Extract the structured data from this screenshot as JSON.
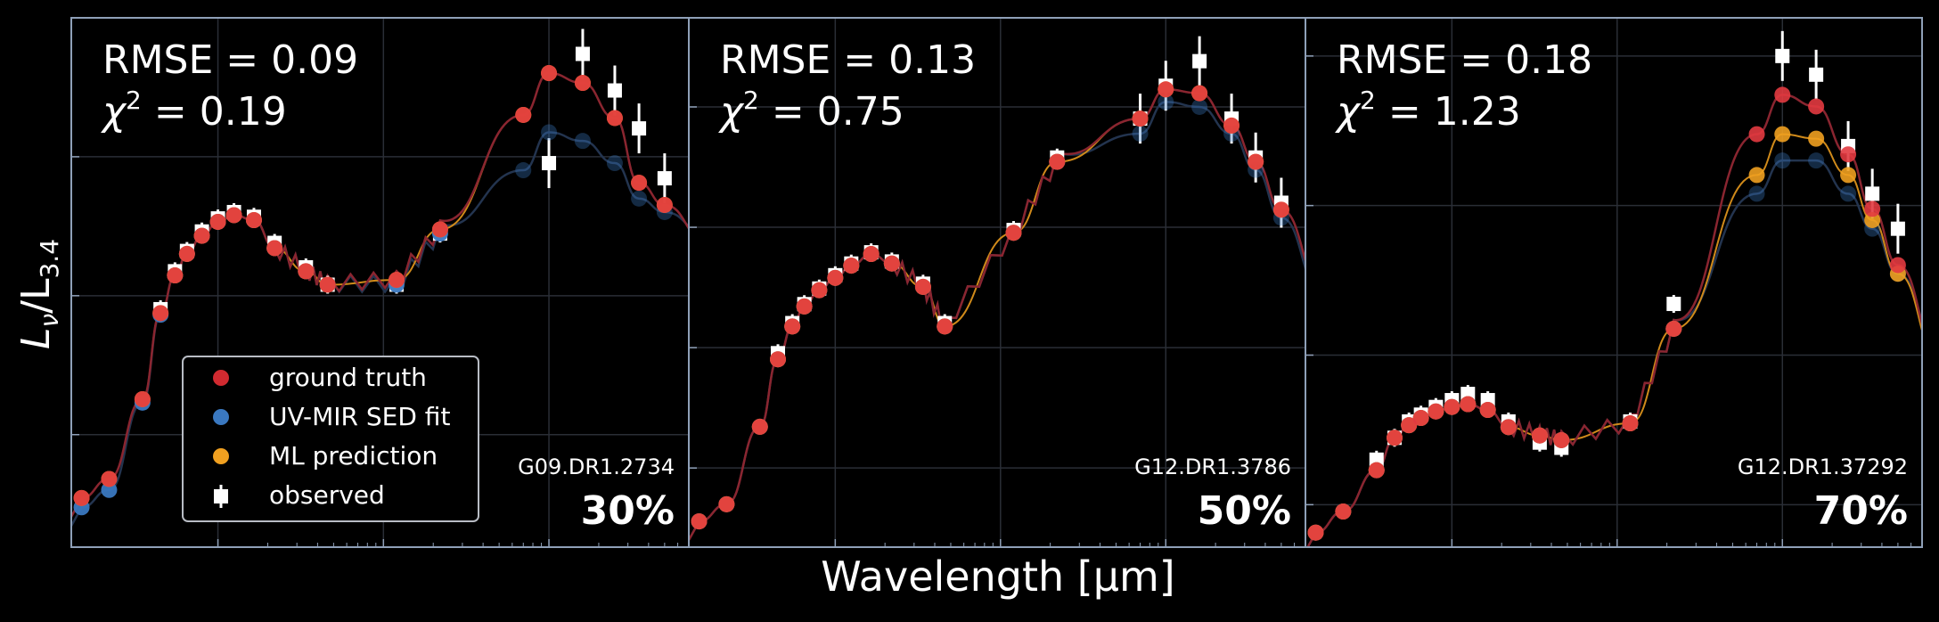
{
  "figure": {
    "ylabel_main": "L",
    "ylabel_sub1": "ν",
    "ylabel_mid": "/L",
    "ylabel_sub2": "3.4",
    "xlabel": "Wavelength [μm]"
  },
  "colors": {
    "background": "#000000",
    "frame": "#8fa0b8",
    "grid": "#2a2e36",
    "ground_truth": "#e23a40",
    "uv_mir_fit": "#3a78c0",
    "ml_prediction": "#f0a020",
    "observed": "#ffffff",
    "truth_curve": "#8a2530",
    "fit_curve": "#23344f",
    "pred_curve": "#d08a1a"
  },
  "legend": {
    "ground_truth": "ground truth",
    "uv_mir_fit": "UV-MIR SED fit",
    "ml_prediction": "ML prediction",
    "observed": "observed"
  },
  "chart_data": [
    {
      "type": "scatter",
      "panel": 1,
      "rmse_text": "RMSE = 0.09",
      "chi_symbol": "χ",
      "chi_exp": "2",
      "chi_value": " = 0.19",
      "galaxy_id": "G09.DR1.2734",
      "percent": "30%",
      "x_scale": "log",
      "xlim": [
        0.13,
        700
      ],
      "y_scale": "log",
      "ylim": [
        0.00155,
        10
      ],
      "grid": true,
      "legend_position": "lower-left",
      "x": [
        0.15,
        0.22,
        0.35,
        0.45,
        0.55,
        0.65,
        0.8,
        1.0,
        1.25,
        1.65,
        2.2,
        3.4,
        4.6,
        12,
        22,
        70,
        100,
        160,
        250,
        350,
        500
      ],
      "ground_truth": [
        0.0035,
        0.0048,
        0.018,
        0.075,
        0.14,
        0.2,
        0.27,
        0.34,
        0.38,
        0.35,
        0.22,
        0.15,
        0.12,
        0.13,
        0.3,
        2.0,
        4.0,
        3.4,
        1.9,
        0.65,
        0.45
      ],
      "uv_mir_fit": [
        0.003,
        0.004,
        0.017,
        0.073,
        0.14,
        0.2,
        0.27,
        0.34,
        0.38,
        0.35,
        0.22,
        0.15,
        0.12,
        0.12,
        0.28,
        0.8,
        1.5,
        1.3,
        0.9,
        0.5,
        0.4
      ],
      "ml_prediction": [
        0.0035,
        0.0048,
        0.018,
        0.075,
        0.14,
        0.2,
        0.27,
        0.34,
        0.38,
        0.35,
        0.22,
        0.15,
        0.12,
        0.13,
        0.3,
        2.0,
        4.0,
        3.4,
        1.9,
        0.65,
        0.45
      ],
      "observed": [
        null,
        null,
        null,
        0.08,
        0.15,
        0.21,
        0.29,
        0.36,
        0.4,
        0.37,
        0.24,
        0.16,
        0.12,
        0.12,
        0.28,
        null,
        0.9,
        5.5,
        3.0,
        1.6,
        0.7
      ]
    },
    {
      "type": "scatter",
      "panel": 2,
      "rmse_text": "RMSE = 0.13",
      "chi_symbol": "χ",
      "chi_exp": "2",
      "chi_value": " = 0.75",
      "galaxy_id": "G12.DR1.3786",
      "percent": "50%",
      "x_scale": "log",
      "xlim": [
        0.13,
        700
      ],
      "y_scale": "log",
      "ylim": [
        0.0022,
        55
      ],
      "grid": true,
      "x": [
        0.15,
        0.22,
        0.35,
        0.45,
        0.55,
        0.65,
        0.8,
        1.0,
        1.25,
        1.65,
        2.2,
        3.4,
        4.6,
        12,
        22,
        70,
        100,
        160,
        250,
        350,
        500
      ],
      "ground_truth": [
        0.0036,
        0.005,
        0.022,
        0.08,
        0.15,
        0.22,
        0.3,
        0.38,
        0.48,
        0.6,
        0.5,
        0.32,
        0.15,
        0.9,
        3.5,
        8.0,
        14.0,
        13.0,
        7.0,
        3.5,
        1.4
      ],
      "uv_mir_fit": [
        0.0036,
        0.005,
        0.022,
        0.08,
        0.15,
        0.22,
        0.3,
        0.38,
        0.48,
        0.6,
        0.5,
        0.32,
        0.15,
        0.9,
        3.5,
        6.0,
        11.0,
        10.0,
        6.0,
        3.0,
        1.2
      ],
      "ml_prediction": [
        0.0036,
        0.005,
        0.022,
        0.08,
        0.15,
        0.22,
        0.3,
        0.38,
        0.48,
        0.6,
        0.5,
        0.32,
        0.15,
        0.9,
        3.5,
        8.0,
        14.0,
        13.0,
        7.0,
        3.5,
        1.4
      ],
      "observed": [
        null,
        null,
        null,
        0.09,
        0.16,
        0.23,
        0.31,
        0.4,
        0.5,
        0.62,
        0.52,
        0.34,
        0.16,
        0.95,
        3.8,
        8.0,
        15.0,
        24.0,
        8.0,
        3.8,
        1.6
      ]
    },
    {
      "type": "scatter",
      "panel": 3,
      "rmse_text": "RMSE = 0.18",
      "chi_symbol": "χ",
      "chi_exp": "2",
      "chi_value": " = 1.23",
      "galaxy_id": "G12.DR1.37292",
      "percent": "70%",
      "x_scale": "log",
      "xlim": [
        0.13,
        700
      ],
      "y_scale": "log",
      "ylim": [
        0.0052,
        18
      ],
      "grid": true,
      "x": [
        0.15,
        0.22,
        0.35,
        0.45,
        0.55,
        0.65,
        0.8,
        1.0,
        1.25,
        1.65,
        2.2,
        3.4,
        4.6,
        12,
        22,
        70,
        100,
        160,
        250,
        350,
        500
      ],
      "ground_truth": [
        0.0065,
        0.009,
        0.017,
        0.028,
        0.034,
        0.038,
        0.042,
        0.045,
        0.047,
        0.043,
        0.033,
        0.029,
        0.027,
        0.035,
        0.15,
        3.0,
        5.5,
        4.6,
        2.2,
        0.95,
        0.4
      ],
      "uv_mir_fit": [
        0.0065,
        0.009,
        0.017,
        0.028,
        0.034,
        0.038,
        0.042,
        0.045,
        0.047,
        0.043,
        0.033,
        0.029,
        0.027,
        0.035,
        0.15,
        1.2,
        2.0,
        2.0,
        1.2,
        0.7,
        0.35
      ],
      "ml_prediction": [
        0.0065,
        0.009,
        0.017,
        0.028,
        0.034,
        0.038,
        0.042,
        0.045,
        0.047,
        0.043,
        0.033,
        0.029,
        0.027,
        0.035,
        0.15,
        1.6,
        3.0,
        2.8,
        1.6,
        0.8,
        0.35
      ],
      "observed": [
        null,
        null,
        0.02,
        0.028,
        0.036,
        0.04,
        0.045,
        0.05,
        0.055,
        0.05,
        0.036,
        0.026,
        0.024,
        0.036,
        0.22,
        null,
        10.0,
        7.5,
        2.5,
        1.2,
        0.7
      ]
    }
  ]
}
